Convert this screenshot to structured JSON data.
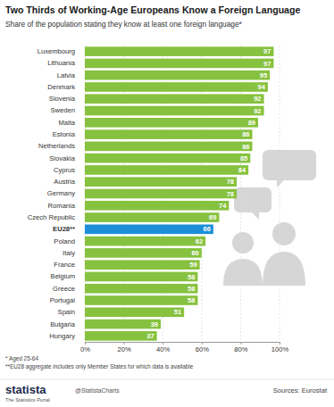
{
  "chart_data": {
    "type": "bar",
    "title": "Two Thirds of Working-Age Europeans Know a Foreign Language",
    "subtitle": "Share of the population stating they know at least one foreign language*",
    "orientation": "horizontal",
    "categories": [
      "Luxembourg",
      "Lithuania",
      "Latvia",
      "Denmark",
      "Slovenia",
      "Sweden",
      "Malta",
      "Estonia",
      "Netherlands",
      "Slovakia",
      "Cyprus",
      "Austria",
      "Germany",
      "Romania",
      "Czech Republic",
      "EU28**",
      "Poland",
      "Italy",
      "France",
      "Belgium",
      "Greece",
      "Portugal",
      "Spain",
      "Bulgaria",
      "Hungary"
    ],
    "values": [
      97,
      97,
      95,
      94,
      92,
      92,
      89,
      86,
      86,
      85,
      84,
      78,
      78,
      74,
      69,
      66,
      62,
      60,
      59,
      58,
      58,
      58,
      51,
      39,
      37
    ],
    "colors": [
      "#86c23f",
      "#86c23f",
      "#86c23f",
      "#86c23f",
      "#86c23f",
      "#86c23f",
      "#86c23f",
      "#86c23f",
      "#86c23f",
      "#86c23f",
      "#86c23f",
      "#86c23f",
      "#86c23f",
      "#86c23f",
      "#86c23f",
      "#1d8fd8",
      "#86c23f",
      "#86c23f",
      "#86c23f",
      "#86c23f",
      "#86c23f",
      "#86c23f",
      "#86c23f",
      "#86c23f",
      "#86c23f"
    ],
    "xlim": [
      0,
      100
    ],
    "xticks": [
      {
        "value": 0,
        "label": "0%"
      },
      {
        "value": 20,
        "label": "20%"
      },
      {
        "value": 40,
        "label": "40%"
      },
      {
        "value": 60,
        "label": "60%"
      },
      {
        "value": 80,
        "label": "80%"
      },
      {
        "value": 100,
        "label": "100%"
      }
    ],
    "grid": true,
    "data_labels": true,
    "footnotes": [
      "* Aged 25-64",
      "**EU28 aggregate includes only Member States for which data is available"
    ],
    "source": "Sources: Eurostat",
    "logo": [
      "statista",
      "The Statistics Portal",
      "@StatistaCharts"
    ]
  }
}
